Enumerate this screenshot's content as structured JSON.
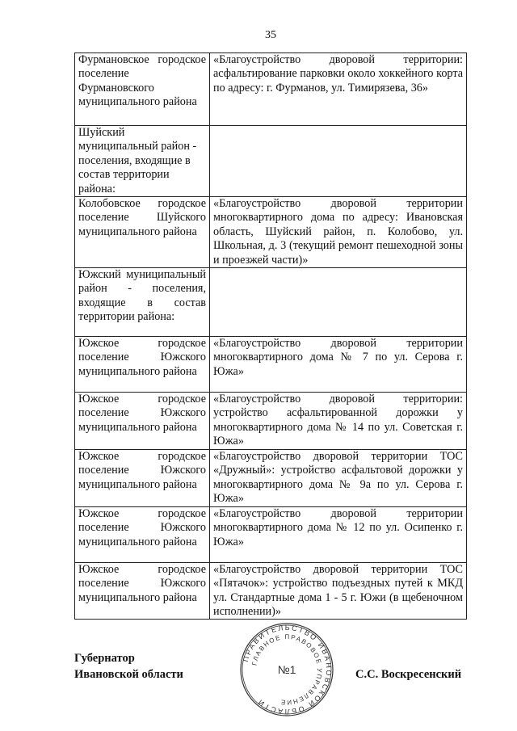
{
  "page_number": "35",
  "rows": [
    {
      "settlement": "Фурмановское городское поселение Фурмановского муниципального района",
      "project": "«Благоустройство дворовой территории: асфальтирование парковки около хоккейного корта по адресу: г. Фурманов, ул. Тимирязева, 36»"
    },
    {
      "settlement": "Шуйский муниципальный район - поселения, входящие в состав территории района:",
      "project": ""
    },
    {
      "settlement": "Колобовское городское поселение Шуйского муниципального района",
      "project": "«Благоустройство дворовой территории многоквартирного дома по адресу: Ивановская область, Шуйский район, п. Колобово, ул. Школьная, д. 3 (текущий ремонт пешеходной зоны и проезжей части)»"
    },
    {
      "settlement": "Южский муниципальный район - поселения, входящие в состав территории района:",
      "project": ""
    },
    {
      "settlement": "Южское городское поселение Южского муниципального района",
      "project": "«Благоустройство дворовой территории многоквартирного дома № 7 по ул. Серова г. Южа»"
    },
    {
      "settlement": "Южское городское поселение Южского муниципального района",
      "project": "«Благоустройство дворовой территории: устройство асфальтированной дорожки у многоквартирного дома № 14 по ул. Советская г. Южа»"
    },
    {
      "settlement": "Южское городское поселение Южского муниципального района",
      "project": "«Благоустройство дворовой территории ТОС «Дружный»: устройство асфальтовой дорожки у многоквартирного дома № 9а по ул. Серова г. Южа»"
    },
    {
      "settlement": "Южское городское поселение Южского муниципального района",
      "project": "«Благоустройство дворовой территории многоквартирного дома № 12 по ул. Осипенко г. Южа»"
    },
    {
      "settlement": "Южское городское поселение Южского муниципального района",
      "project": "«Благоустройство дворовой территории ТОС «Пятачок»: устройство подъездных путей к МКД ул. Стандартные дома 1 - 5 г. Южи (в щебеночном исполнении)»"
    }
  ],
  "signature": {
    "title_line1": "Губернатор",
    "title_line2": "Ивановской области",
    "name": "С.С. Воскресенский"
  },
  "stamp": {
    "outer_text": "ПРАВИТЕЛЬСТВО ИВАНОВСКОЙ ОБЛАСТИ",
    "inner_text": "ГЛАВНОЕ ПРАВОВОЕ УПРАВЛЕНИЕ",
    "center_text": "№1"
  }
}
